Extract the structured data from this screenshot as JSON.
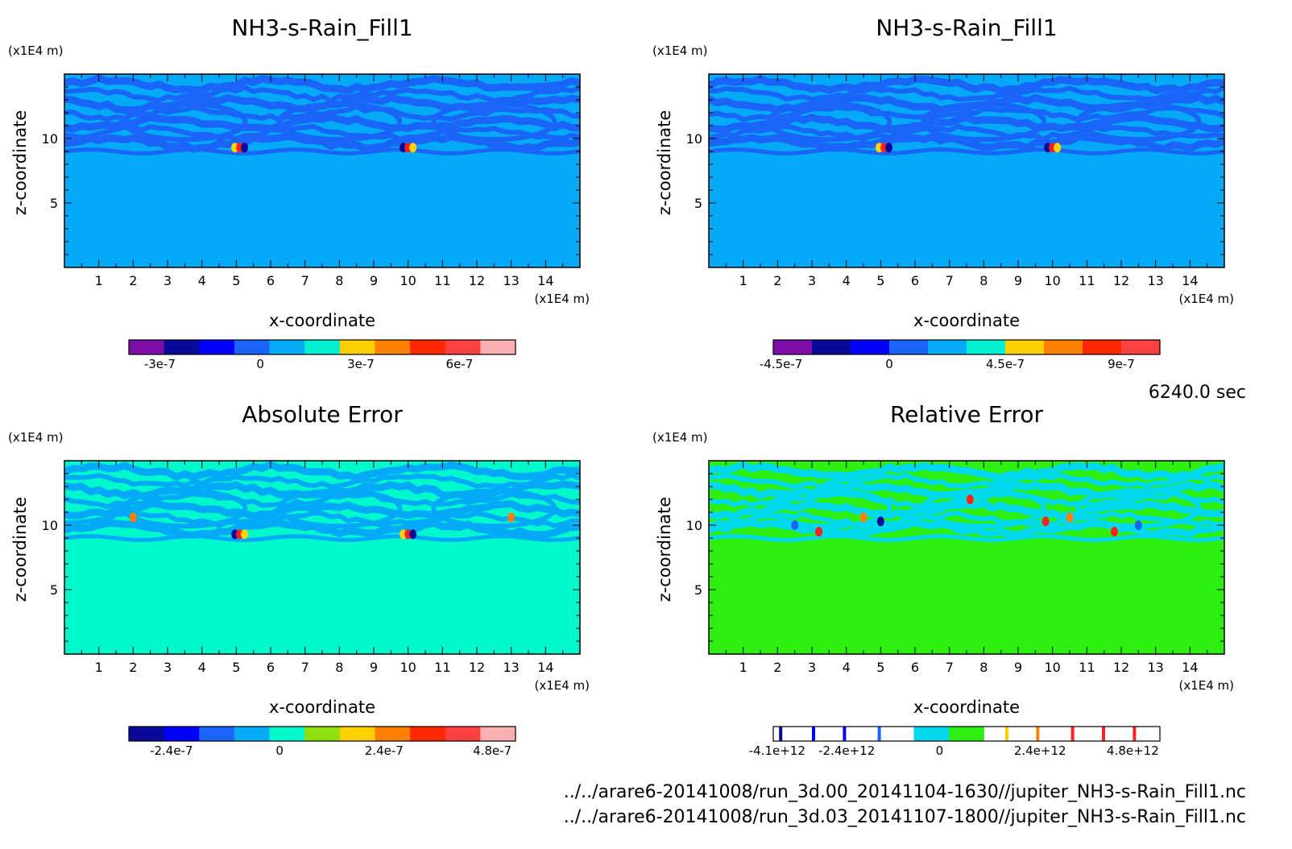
{
  "time_label": "6240.0 sec",
  "footer": {
    "line1": "../../arare6-20141008/run_3d.00_20141104-1630//jupiter_NH3-s-Rain_Fill1.nc",
    "line2": "../../arare6-20141008/run_3d.03_20141107-1800//jupiter_NH3-s-Rain_Fill1.nc"
  },
  "chart_data": [
    {
      "type": "heatmap",
      "title": "NH3-s-Rain_Fill1",
      "xlabel": "x-coordinate",
      "ylabel": "z-coordinate",
      "x_unit": "(x1E4 m)",
      "y_unit": "(x1E4 m)",
      "xlim": [
        0,
        15
      ],
      "ylim": [
        0,
        15
      ],
      "xticks": [
        "1",
        "2",
        "3",
        "4",
        "5",
        "6",
        "7",
        "8",
        "9",
        "10",
        "11",
        "12",
        "13",
        "14"
      ],
      "yticks": [
        "5",
        "10"
      ],
      "background": "#04aaf7",
      "band_color": "#1a64f8",
      "spots": [
        {
          "x": 5.1,
          "z": 9.3,
          "colors": [
            "#ffd400",
            "#ff2020",
            "#0a0a9a"
          ]
        },
        {
          "x": 10.0,
          "z": 9.3,
          "colors": [
            "#0a0a9a",
            "#ff2020",
            "#ffd400"
          ]
        }
      ],
      "colorbar": {
        "colors": [
          "#7e0ea8",
          "#0a0a9a",
          "#0000ff",
          "#1a64f8",
          "#04aaf7",
          "#00f0d0",
          "#ffd000",
          "#ff8000",
          "#ff2800",
          "#ff4040",
          "#f8b0b0"
        ],
        "ticks": [
          "-3e-7",
          "0",
          "3e-7",
          "6e-7"
        ]
      }
    },
    {
      "type": "heatmap",
      "title": "NH3-s-Rain_Fill1",
      "xlabel": "x-coordinate",
      "ylabel": "z-coordinate",
      "x_unit": "(x1E4 m)",
      "y_unit": "(x1E4 m)",
      "xlim": [
        0,
        15
      ],
      "ylim": [
        0,
        15
      ],
      "xticks": [
        "1",
        "2",
        "3",
        "4",
        "5",
        "6",
        "7",
        "8",
        "9",
        "10",
        "11",
        "12",
        "13",
        "14"
      ],
      "yticks": [
        "5",
        "10"
      ],
      "background": "#04aaf7",
      "band_color": "#1a64f8",
      "spots": [
        {
          "x": 5.1,
          "z": 9.3,
          "colors": [
            "#ffd400",
            "#ff2020",
            "#0a0a9a"
          ]
        },
        {
          "x": 10.0,
          "z": 9.3,
          "colors": [
            "#0a0a9a",
            "#ff2020",
            "#ffd400"
          ]
        }
      ],
      "colorbar": {
        "colors": [
          "#7e0ea8",
          "#0a0a9a",
          "#0000ff",
          "#1a64f8",
          "#04aaf7",
          "#00f0d0",
          "#ffd000",
          "#ff8000",
          "#ff2800",
          "#ff4040"
        ],
        "ticks": [
          "-4.5e-7",
          "0",
          "4.5e-7",
          "9e-7"
        ]
      }
    },
    {
      "type": "heatmap",
      "title": "Absolute Error",
      "xlabel": "x-coordinate",
      "ylabel": "z-coordinate",
      "x_unit": "(x1E4 m)",
      "y_unit": "(x1E4 m)",
      "xlim": [
        0,
        15
      ],
      "ylim": [
        0,
        15
      ],
      "xticks": [
        "1",
        "2",
        "3",
        "4",
        "5",
        "6",
        "7",
        "8",
        "9",
        "10",
        "11",
        "12",
        "13",
        "14"
      ],
      "yticks": [
        "5",
        "10"
      ],
      "background": "#00f8cc",
      "band_color": "#04aaf7",
      "spots": [
        {
          "x": 5.1,
          "z": 9.3,
          "colors": [
            "#0a0a9a",
            "#ff2020",
            "#ffd400"
          ]
        },
        {
          "x": 10.0,
          "z": 9.3,
          "colors": [
            "#ffd400",
            "#ff2020",
            "#0a0a9a"
          ]
        },
        {
          "x": 2.0,
          "z": 10.6,
          "colors": [
            "#ff8000"
          ]
        },
        {
          "x": 13.0,
          "z": 10.6,
          "colors": [
            "#ff8000"
          ]
        }
      ],
      "colorbar": {
        "colors": [
          "#0a0a9a",
          "#0000ff",
          "#1a64f8",
          "#04aaf7",
          "#00f8cc",
          "#90e010",
          "#ffd000",
          "#ff8000",
          "#ff2800",
          "#ff4040",
          "#f8b0b0"
        ],
        "ticks": [
          "-2.4e-7",
          "0",
          "2.4e-7",
          "4.8e-7"
        ]
      }
    },
    {
      "type": "heatmap",
      "title": "Relative Error",
      "xlabel": "x-coordinate",
      "ylabel": "z-coordinate",
      "x_unit": "(x1E4 m)",
      "y_unit": "(x1E4 m)",
      "xlim": [
        0,
        15
      ],
      "ylim": [
        0,
        15
      ],
      "xticks": [
        "1",
        "2",
        "3",
        "4",
        "5",
        "6",
        "7",
        "8",
        "9",
        "10",
        "11",
        "12",
        "13",
        "14"
      ],
      "yticks": [
        "5",
        "10"
      ],
      "background": "#2ef010",
      "band_color": "#00d8f0",
      "spots": [
        {
          "x": 7.6,
          "z": 12.0,
          "colors": [
            "#ff2020"
          ]
        },
        {
          "x": 4.5,
          "z": 10.6,
          "colors": [
            "#ff8000"
          ]
        },
        {
          "x": 5.0,
          "z": 10.3,
          "colors": [
            "#0a0a9a"
          ]
        },
        {
          "x": 10.5,
          "z": 10.6,
          "colors": [
            "#ff8000"
          ]
        },
        {
          "x": 9.8,
          "z": 10.3,
          "colors": [
            "#ff2020"
          ]
        },
        {
          "x": 2.5,
          "z": 10.0,
          "colors": [
            "#1a64f8"
          ]
        },
        {
          "x": 12.5,
          "z": 10.0,
          "colors": [
            "#1a64f8"
          ]
        },
        {
          "x": 3.2,
          "z": 9.5,
          "colors": [
            "#ff2020"
          ]
        },
        {
          "x": 11.8,
          "z": 9.5,
          "colors": [
            "#ff2020"
          ]
        }
      ],
      "colorbar": {
        "colors": [
          "#ffffff",
          "#ffffff",
          "#ffffff",
          "#ffffff",
          "#00d8f0",
          "#2ef010",
          "#ffffff",
          "#ffffff",
          "#ffffff",
          "#ffffff",
          "#ffffff"
        ],
        "ticks": [
          "-4.1e+12",
          "-2.4e+12",
          "0",
          "2.4e+12",
          "4.8e+12"
        ]
      }
    }
  ]
}
